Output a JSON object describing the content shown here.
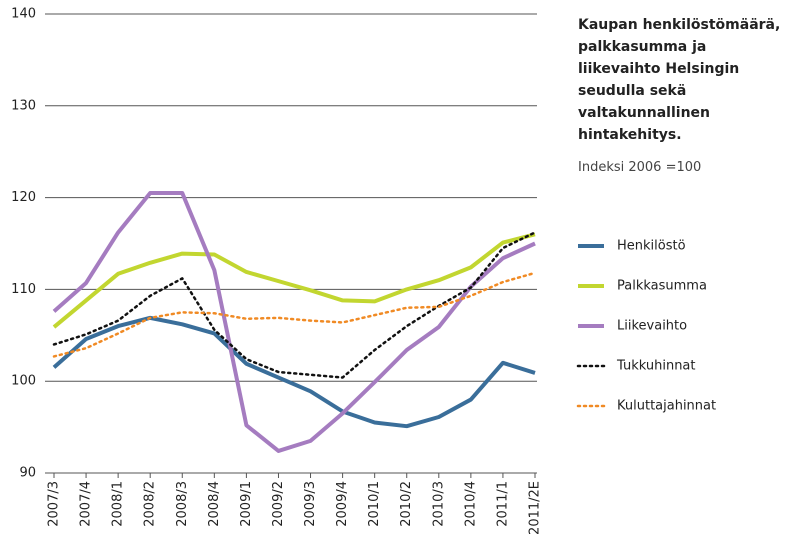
{
  "chart_data": {
    "type": "line",
    "title": "Kaupan henkilöstömäärä, palkkasumma ja liikevaihto Helsingin seudulla sekä valtakunnallinen hintakehitys.",
    "subtitle": "Indeksi 2006 =100",
    "categories": [
      "2007/3",
      "2007/4",
      "2008/1",
      "2008/2",
      "2008/3",
      "2008/4",
      "2009/1",
      "2009/2",
      "2009/3",
      "2009/4",
      "2010/1",
      "2010/2",
      "2010/3",
      "2010/4",
      "2011/1",
      "2011/2E"
    ],
    "series": [
      {
        "name": "Henkilöstö",
        "color": "#3a6e9a",
        "style": "solid",
        "values": [
          101.5,
          104.6,
          106.0,
          106.9,
          106.2,
          105.2,
          101.9,
          100.4,
          98.9,
          96.7,
          95.5,
          95.1,
          96.1,
          98.0,
          102.0,
          100.9
        ]
      },
      {
        "name": "Palkkasumma",
        "color": "#c2d630",
        "style": "solid",
        "values": [
          105.9,
          108.8,
          111.7,
          112.9,
          113.9,
          113.8,
          111.9,
          110.9,
          109.9,
          108.8,
          108.7,
          110.0,
          111.0,
          112.4,
          115.1,
          116.0
        ]
      },
      {
        "name": "Liikevaihto",
        "color": "#a57cc0",
        "style": "solid",
        "values": [
          107.6,
          110.7,
          116.2,
          120.5,
          120.5,
          112.1,
          95.2,
          92.4,
          93.5,
          96.5,
          99.9,
          103.4,
          105.9,
          110.3,
          113.4,
          115.0
        ]
      },
      {
        "name": "Tukkuhinnat",
        "color": "#111111",
        "style": "dotted",
        "values": [
          104.0,
          105.1,
          106.6,
          109.3,
          111.2,
          105.6,
          102.4,
          101.0,
          100.7,
          100.4,
          103.4,
          106.0,
          108.2,
          110.2,
          114.5,
          116.2
        ]
      },
      {
        "name": "Kuluttajahinnat",
        "color": "#f08a24",
        "style": "dotted",
        "values": [
          102.7,
          103.6,
          105.2,
          106.9,
          107.5,
          107.4,
          106.8,
          106.9,
          106.6,
          106.4,
          107.2,
          108.0,
          108.1,
          109.3,
          110.8,
          111.8
        ]
      }
    ],
    "ylim": [
      90,
      140
    ],
    "yticks": [
      90,
      100,
      110,
      120,
      130,
      140
    ],
    "grid": true,
    "legend": "right"
  }
}
